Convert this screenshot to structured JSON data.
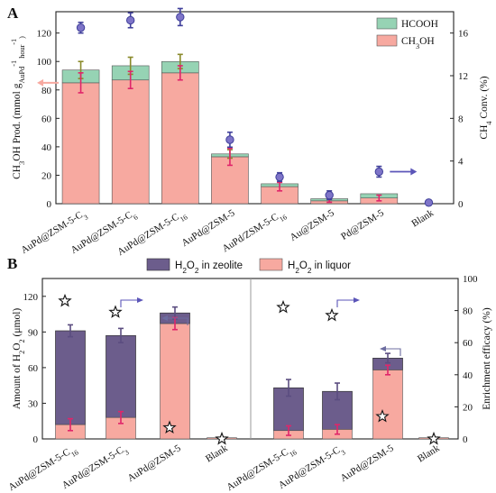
{
  "chart_data": [
    {
      "panel": "A",
      "type": "bar",
      "stacked": true,
      "ylabel_parts": [
        "CH",
        "3",
        "OH Prod. (mmol g",
        "AuPd",
        "-1",
        " hour",
        "-1",
        ")"
      ],
      "y2label_parts": [
        "CH",
        "4",
        " Conv. (%)"
      ],
      "ylim": [
        0,
        135
      ],
      "yticks": [
        0,
        20,
        40,
        60,
        80,
        100,
        120
      ],
      "y2lim": [
        0,
        18
      ],
      "y2ticks": [
        0,
        4,
        8,
        12,
        16
      ],
      "categories": [
        {
          "main": "AuPd@ZSM-5-C",
          "sub": "3"
        },
        {
          "main": "AuPd@ZSM-5-C",
          "sub": "6"
        },
        {
          "main": "AuPd@ZSM-5-C",
          "sub": "16"
        },
        {
          "main": "AuPd@ZSM-5",
          "sub": ""
        },
        {
          "main": "AuPd/ZSM-5-C",
          "sub": "16"
        },
        {
          "main": "Au@ZSM-5",
          "sub": ""
        },
        {
          "main": "Pd@ZSM-5",
          "sub": ""
        },
        {
          "main": "Blank",
          "sub": ""
        }
      ],
      "series": [
        {
          "name_parts": [
            "CH",
            "3",
            "OH"
          ],
          "color": "#f7a9a0",
          "values": [
            85,
            87,
            92,
            33,
            12,
            2,
            4,
            0
          ],
          "errors": [
            7,
            6,
            5,
            6,
            3,
            1,
            2,
            0
          ],
          "error_color": "#e0256a"
        },
        {
          "name_parts": [
            "HCOOH"
          ],
          "color": "#96d3b4",
          "values": [
            9,
            10,
            8,
            2,
            2,
            1.5,
            3,
            0
          ],
          "errors": [
            6,
            6,
            5,
            3,
            0,
            0,
            0,
            0
          ],
          "error_color": "#8a8a2a"
        }
      ],
      "conversion": {
        "color": "#7e74c8",
        "edge": "#3f3f9a",
        "values": [
          16.5,
          17.2,
          17.5,
          6.0,
          2.5,
          0.8,
          3.0,
          0.1
        ],
        "errors": [
          0.5,
          0.7,
          0.8,
          0.7,
          0.4,
          0.4,
          0.5,
          0.1
        ]
      }
    },
    {
      "panel": "B",
      "type": "bar",
      "stacked": true,
      "ylabel_parts": [
        "Amount of H",
        "2",
        "O",
        "2",
        " (μmol)"
      ],
      "y2label_parts": [
        "Enrichment efficacy (%)"
      ],
      "ylim": [
        0,
        135
      ],
      "yticks": [
        0,
        30,
        60,
        90,
        120
      ],
      "y2lim": [
        0,
        100
      ],
      "y2ticks": [
        0,
        20,
        40,
        60,
        80,
        100
      ],
      "groups": [
        {
          "categories": [
            {
              "main": "AuPd@ZSM-5-C",
              "sub": "16"
            },
            {
              "main": "AuPd@ZSM-5-C",
              "sub": "3"
            },
            {
              "main": "AuPd@ZSM-5",
              "sub": ""
            },
            {
              "main": "Blank",
              "sub": ""
            }
          ],
          "liquor": [
            12,
            18,
            97,
            1
          ],
          "liquor_err": [
            5,
            5,
            5,
            0
          ],
          "zeolite": [
            79,
            69,
            9,
            0
          ],
          "total_err": [
            5,
            6,
            5,
            0
          ],
          "efficacy": [
            86,
            79,
            7,
            0
          ]
        },
        {
          "categories": [
            {
              "main": "AuPd@ZSM-5-C",
              "sub": "16"
            },
            {
              "main": "AuPd@ZSM-5-C",
              "sub": "3"
            },
            {
              "main": "AuPd@ZSM-5",
              "sub": ""
            },
            {
              "main": "Blank",
              "sub": ""
            }
          ],
          "liquor": [
            7,
            8,
            58,
            1
          ],
          "liquor_err": [
            4,
            4,
            4,
            0
          ],
          "zeolite": [
            36,
            32,
            10,
            0
          ],
          "total_err": [
            7,
            7,
            4,
            0
          ],
          "efficacy": [
            82,
            77,
            14,
            0
          ]
        }
      ],
      "legend": [
        {
          "name_parts": [
            "H",
            "2",
            "O",
            "2",
            " in zeolite"
          ],
          "color": "#6c5d8c"
        },
        {
          "name_parts": [
            "H",
            "2",
            "O",
            "2",
            " in liquor"
          ],
          "color": "#f7a9a0"
        }
      ]
    }
  ],
  "labels": {
    "panel_a": "A",
    "panel_b": "B"
  }
}
